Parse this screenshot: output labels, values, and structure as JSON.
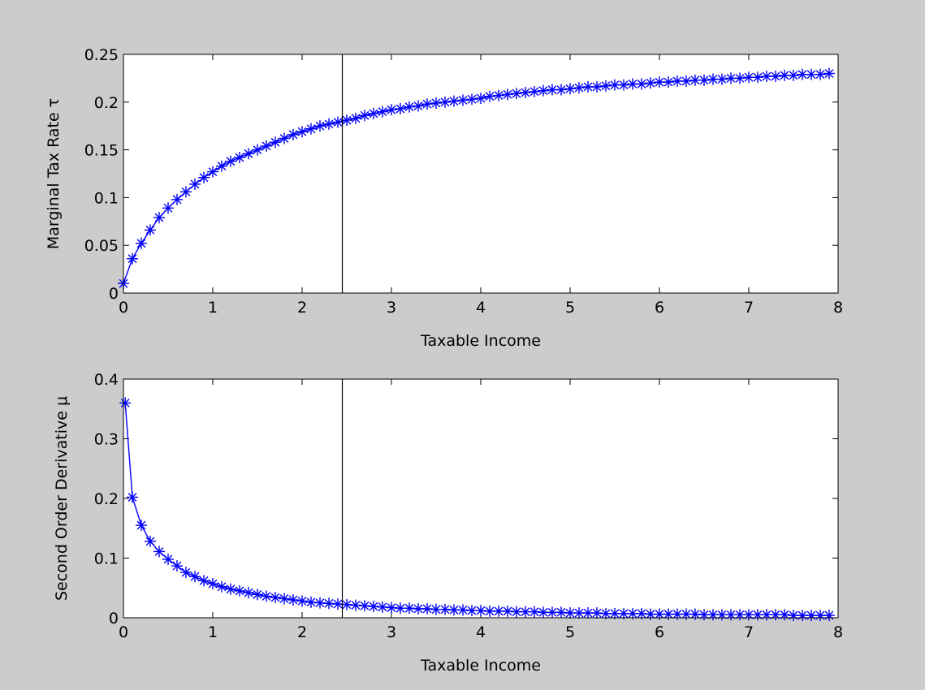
{
  "chart_data": [
    {
      "type": "line",
      "xlabel": "Taxable Income",
      "ylabel": "Marginal Tax Rate  τ",
      "xlim": [
        0,
        8
      ],
      "ylim": [
        0,
        0.25
      ],
      "xticks": [
        "0",
        "1",
        "2",
        "3",
        "4",
        "5",
        "6",
        "7",
        "8"
      ],
      "yticks": [
        "0",
        "0.05",
        "0.1",
        "0.15",
        "0.2",
        "0.25"
      ],
      "grid": false,
      "vline_x": 2.45,
      "series": [
        {
          "color": "#0000ff",
          "marker": "asterisk",
          "x": [
            0,
            0.1,
            0.2,
            0.3,
            0.4,
            0.5,
            0.6,
            0.7,
            0.8,
            0.9,
            1.0,
            1.1,
            1.2,
            1.3,
            1.4,
            1.5,
            1.6,
            1.7,
            1.8,
            1.9,
            2.0,
            2.1,
            2.2,
            2.3,
            2.4,
            2.5,
            2.6,
            2.7,
            2.8,
            2.9,
            3.0,
            3.1,
            3.2,
            3.3,
            3.4,
            3.5,
            3.6,
            3.7,
            3.8,
            3.9,
            4.0,
            4.1,
            4.2,
            4.3,
            4.4,
            4.5,
            4.6,
            4.7,
            4.8,
            4.9,
            5.0,
            5.1,
            5.2,
            5.3,
            5.4,
            5.5,
            5.6,
            5.7,
            5.8,
            5.9,
            6.0,
            6.1,
            6.2,
            6.3,
            6.4,
            6.5,
            6.6,
            6.7,
            6.8,
            6.9,
            7.0,
            7.1,
            7.2,
            7.3,
            7.4,
            7.5,
            7.6,
            7.7,
            7.8,
            7.9
          ],
          "y": [
            0.01,
            0.036,
            0.052,
            0.066,
            0.079,
            0.089,
            0.098,
            0.106,
            0.114,
            0.121,
            0.127,
            0.133,
            0.138,
            0.142,
            0.146,
            0.15,
            0.154,
            0.158,
            0.162,
            0.166,
            0.169,
            0.172,
            0.175,
            0.177,
            0.179,
            0.181,
            0.183,
            0.186,
            0.188,
            0.19,
            0.192,
            0.193,
            0.195,
            0.196,
            0.198,
            0.199,
            0.2,
            0.201,
            0.202,
            0.203,
            0.204,
            0.206,
            0.207,
            0.208,
            0.209,
            0.21,
            0.211,
            0.212,
            0.213,
            0.213,
            0.214,
            0.215,
            0.216,
            0.216,
            0.217,
            0.218,
            0.218,
            0.219,
            0.219,
            0.22,
            0.221,
            0.221,
            0.222,
            0.222,
            0.223,
            0.223,
            0.224,
            0.224,
            0.225,
            0.225,
            0.226,
            0.226,
            0.227,
            0.227,
            0.228,
            0.228,
            0.229,
            0.229,
            0.229,
            0.23
          ]
        }
      ]
    },
    {
      "type": "line",
      "xlabel": "Taxable Income",
      "ylabel": "Second Order Derivative  μ",
      "xlim": [
        0,
        8
      ],
      "ylim": [
        0,
        0.4
      ],
      "xticks": [
        "0",
        "1",
        "2",
        "3",
        "4",
        "5",
        "6",
        "7",
        "8"
      ],
      "yticks": [
        "0",
        "0.1",
        "0.2",
        "0.3",
        "0.4"
      ],
      "grid": false,
      "vline_x": 2.45,
      "series": [
        {
          "color": "#0000ff",
          "marker": "asterisk",
          "x": [
            0.02,
            0.1,
            0.2,
            0.3,
            0.4,
            0.5,
            0.6,
            0.7,
            0.8,
            0.9,
            1.0,
            1.1,
            1.2,
            1.3,
            1.4,
            1.5,
            1.6,
            1.7,
            1.8,
            1.9,
            2.0,
            2.1,
            2.2,
            2.3,
            2.4,
            2.5,
            2.6,
            2.7,
            2.8,
            2.9,
            3.0,
            3.1,
            3.2,
            3.3,
            3.4,
            3.5,
            3.6,
            3.7,
            3.8,
            3.9,
            4.0,
            4.1,
            4.2,
            4.3,
            4.4,
            4.5,
            4.6,
            4.7,
            4.8,
            4.9,
            5.0,
            5.1,
            5.2,
            5.3,
            5.4,
            5.5,
            5.6,
            5.7,
            5.8,
            5.9,
            6.0,
            6.1,
            6.2,
            6.3,
            6.4,
            6.5,
            6.6,
            6.7,
            6.8,
            6.9,
            7.0,
            7.1,
            7.2,
            7.3,
            7.4,
            7.5,
            7.6,
            7.7,
            7.8,
            7.9
          ],
          "y": [
            0.36,
            0.202,
            0.155,
            0.128,
            0.111,
            0.098,
            0.087,
            0.076,
            0.069,
            0.062,
            0.057,
            0.052,
            0.048,
            0.045,
            0.042,
            0.039,
            0.036,
            0.034,
            0.032,
            0.03,
            0.028,
            0.026,
            0.025,
            0.024,
            0.023,
            0.022,
            0.021,
            0.02,
            0.019,
            0.018,
            0.017,
            0.016,
            0.016,
            0.015,
            0.015,
            0.014,
            0.014,
            0.013,
            0.013,
            0.012,
            0.012,
            0.011,
            0.011,
            0.011,
            0.01,
            0.01,
            0.01,
            0.009,
            0.009,
            0.009,
            0.008,
            0.008,
            0.008,
            0.008,
            0.007,
            0.007,
            0.007,
            0.007,
            0.007,
            0.006,
            0.006,
            0.006,
            0.006,
            0.006,
            0.006,
            0.005,
            0.005,
            0.005,
            0.005,
            0.005,
            0.005,
            0.005,
            0.005,
            0.005,
            0.005,
            0.004,
            0.004,
            0.004,
            0.004,
            0.004
          ]
        }
      ]
    }
  ]
}
